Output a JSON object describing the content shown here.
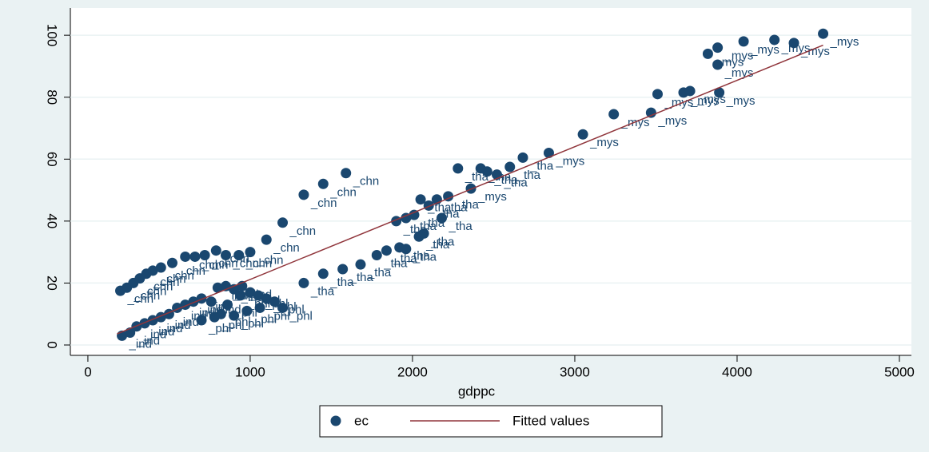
{
  "chart_data": {
    "type": "scatter",
    "x_label": "gdppc",
    "xlim": [
      -108,
      5074
    ],
    "ylim": [
      -3.35,
      108.8
    ],
    "xticks": [
      0,
      1000,
      2000,
      3000,
      4000,
      5000
    ],
    "yticks": [
      0,
      20,
      40,
      60,
      80,
      100
    ],
    "grid": true,
    "legend": "bottom",
    "series": [
      {
        "name": "ec",
        "type": "scatter",
        "color": "#1a476f",
        "x": [
          200,
          240,
          280,
          320,
          360,
          400,
          450,
          520,
          600,
          660,
          720,
          790,
          850,
          930,
          1000,
          1100,
          1200,
          1330,
          1450,
          1590,
          1330,
          1450,
          1570,
          1680,
          1780,
          1840,
          1920,
          1960,
          2040,
          2070,
          1900,
          1960,
          2010,
          2050,
          2100,
          2150,
          2180,
          2220,
          2280,
          2420,
          2460,
          2520,
          2600,
          2680,
          2360,
          2840,
          3050,
          3240,
          3470,
          3510,
          3670,
          3710,
          3890,
          3820,
          3880,
          3880,
          4040,
          4230,
          4350,
          4530,
          210,
          260,
          300,
          350,
          400,
          450,
          500,
          550,
          600,
          650,
          700,
          760,
          800,
          850,
          900,
          950,
          1000,
          1050,
          1100,
          1150,
          1200,
          820,
          900,
          980,
          1060,
          700,
          780,
          860,
          940
        ],
        "values": [
          17.5,
          18.5,
          20,
          21.5,
          23,
          24,
          25,
          26.5,
          28.5,
          28.5,
          29,
          30.5,
          29,
          29,
          30,
          34,
          39.5,
          48.5,
          52,
          55.5,
          20,
          23,
          24.5,
          26,
          29,
          30.5,
          31.5,
          31,
          35,
          36,
          40,
          41,
          42,
          47,
          45,
          47,
          41,
          48,
          57,
          57,
          56,
          55,
          57.5,
          60.5,
          50.5,
          62,
          68,
          74.5,
          75,
          81,
          81.5,
          82,
          81.5,
          94,
          96,
          90.5,
          98,
          98.5,
          97.5,
          100.5,
          3,
          4,
          6,
          7,
          8,
          9,
          10,
          12,
          13,
          14,
          15,
          14,
          18.5,
          19,
          18,
          19,
          17,
          16,
          15,
          14,
          12,
          10,
          9.5,
          11,
          12,
          8,
          9,
          13,
          16
        ],
        "point_labels": [
          "_chn",
          "_chn",
          "_chn",
          "_chn",
          "_chn",
          "_chn",
          "_chn",
          "_chn",
          "_chn",
          "_chn",
          "_chn",
          "_chn",
          "_chn",
          "_chn",
          "_chn",
          "_chn",
          "_chn",
          "_chn",
          "_chn",
          "_chn",
          "_tha",
          "_tha",
          "_tha",
          "_tha",
          "_tha",
          "_tha",
          "_tha",
          "_tha",
          "_tha",
          "_tha",
          "_tha",
          "_tha",
          "_tha",
          "_tha",
          "_tha",
          "_tha",
          "_tha",
          "_tha",
          "_tha",
          "_tha",
          "_tha",
          "_tha",
          "_tha",
          "_tha",
          "_mys",
          "_mys",
          "_mys",
          "_mys",
          "_mys",
          "_mys",
          "_mys",
          "_mys",
          "_mys",
          "_mys",
          "_mys",
          "_mys",
          "_mys",
          "_mys",
          "_mys",
          "_mys",
          "_ind",
          "_ind",
          "_ind",
          "_ind",
          "_ind",
          "_ind",
          "_ind",
          "_ind",
          "_ind",
          "_ind",
          "_ind",
          "_ind",
          "_ind",
          "_ind",
          "_ind",
          "_ind",
          "_ind",
          "_phl",
          "_phl",
          "_phl",
          "_phl",
          "_phl",
          "_phl",
          "_phl",
          "_phl",
          "_phl",
          "_phl",
          "_phl",
          "_phl"
        ]
      },
      {
        "name": "Fitted values",
        "type": "line",
        "color": "#90353b",
        "x": [
          180,
          4530
        ],
        "values": [
          3.6,
          96.8
        ]
      }
    ]
  }
}
